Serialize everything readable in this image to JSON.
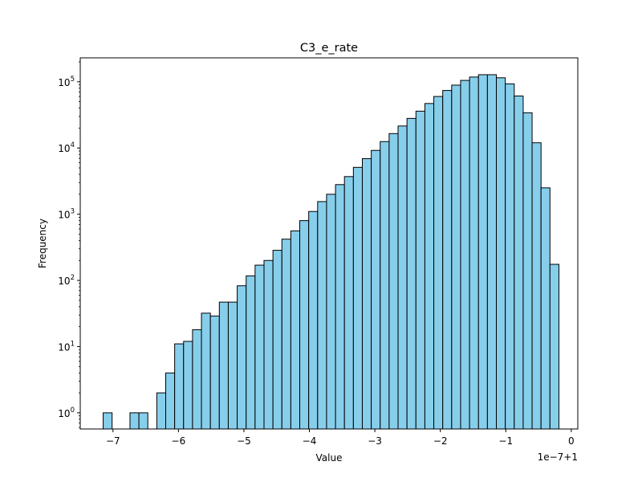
{
  "chart_data": {
    "type": "bar",
    "title": "C3_e_rate",
    "xlabel": "Value",
    "ylabel": "Frequency",
    "x_offset_label": "1e−7+1",
    "yscale": "log",
    "xlim": [
      -7.5,
      0.1
    ],
    "ylim": [
      0.57,
      230000
    ],
    "xticks": [
      -7,
      -6,
      -5,
      -4,
      -3,
      -2,
      -1,
      0
    ],
    "xtick_labels": [
      "−7",
      "−6",
      "−5",
      "−4",
      "−3",
      "−2",
      "−1",
      "0"
    ],
    "yticks": [
      1,
      10,
      100,
      1000,
      10000,
      100000
    ],
    "ytick_bases": [
      "10",
      "10",
      "10",
      "10",
      "10",
      "10"
    ],
    "ytick_exponents": [
      "0",
      "1",
      "2",
      "3",
      "4",
      "5"
    ],
    "bin_start": -7.15,
    "bin_width": 0.1365,
    "counts": [
      1,
      0,
      0,
      1,
      1,
      0,
      2,
      4,
      11,
      12,
      18,
      32,
      29,
      47,
      47,
      83,
      117,
      170,
      200,
      285,
      420,
      560,
      800,
      1100,
      1550,
      2000,
      2800,
      3700,
      5100,
      6900,
      9200,
      12500,
      16500,
      21500,
      28000,
      36000,
      47000,
      60000,
      74000,
      89000,
      105000,
      118000,
      128000,
      128000,
      115000,
      93000,
      61000,
      34000,
      12000,
      2500,
      175
    ],
    "bar_color": "#87ceeb",
    "edge_color": "#000000",
    "grid": false
  }
}
